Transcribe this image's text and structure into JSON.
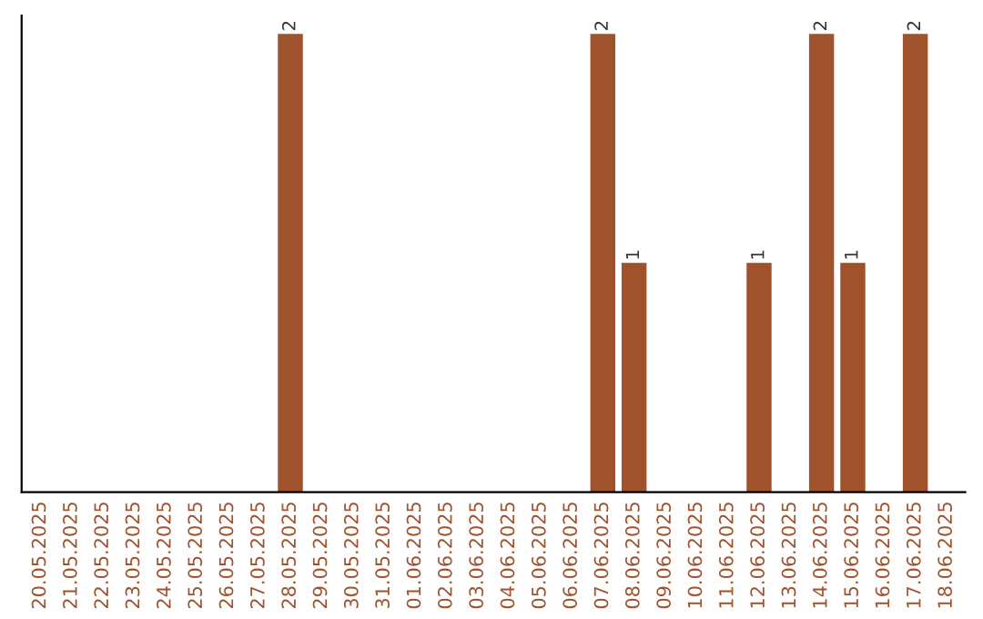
{
  "chart_data": {
    "type": "bar",
    "categories": [
      "20.05.2025",
      "21.05.2025",
      "22.05.2025",
      "23.05.2025",
      "24.05.2025",
      "25.05.2025",
      "26.05.2025",
      "27.05.2025",
      "28.05.2025",
      "29.05.2025",
      "30.05.2025",
      "31.05.2025",
      "01.06.2025",
      "02.06.2025",
      "03.06.2025",
      "04.06.2025",
      "05.06.2025",
      "06.06.2025",
      "07.06.2025",
      "08.06.2025",
      "09.06.2025",
      "10.06.2025",
      "11.06.2025",
      "12.06.2025",
      "13.06.2025",
      "14.06.2025",
      "15.06.2025",
      "16.06.2025",
      "17.06.2025",
      "18.06.2025"
    ],
    "values": [
      0,
      0,
      0,
      0,
      0,
      0,
      0,
      0,
      2,
      0,
      0,
      0,
      0,
      0,
      0,
      0,
      0,
      0,
      2,
      1,
      0,
      0,
      0,
      1,
      0,
      2,
      1,
      0,
      2,
      0
    ],
    "value_labels": [
      null,
      null,
      null,
      null,
      null,
      null,
      null,
      null,
      "2",
      null,
      null,
      null,
      null,
      null,
      null,
      null,
      null,
      null,
      "2",
      "1",
      null,
      null,
      null,
      "1",
      null,
      "2",
      "1",
      null,
      "2",
      null
    ],
    "color": "#a0522d",
    "grid": false,
    "legend": false,
    "tick_labels": "x"
  }
}
